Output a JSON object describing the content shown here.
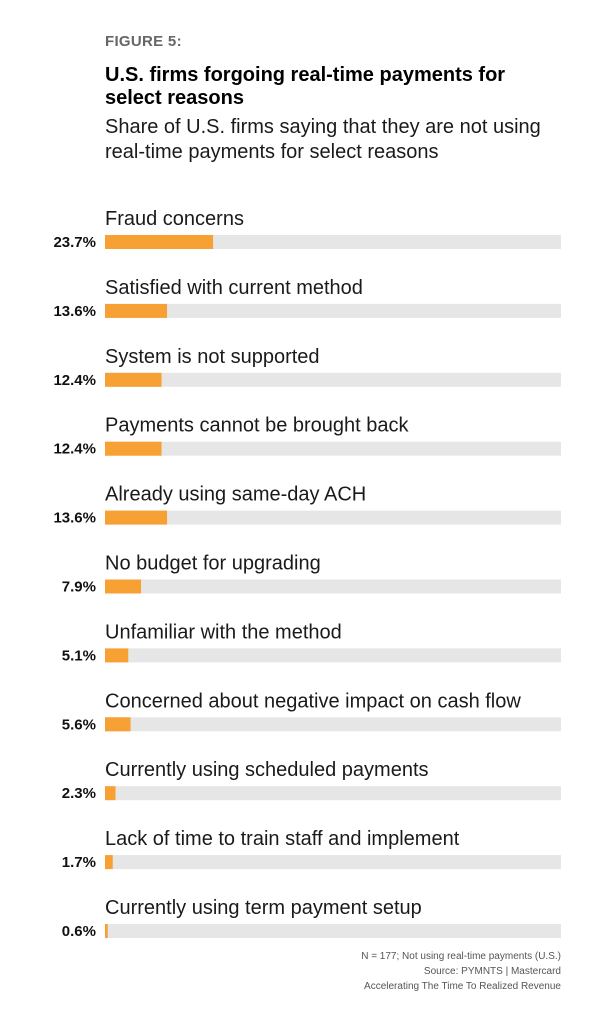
{
  "figure_label": "FIGURE 5:",
  "notes": {
    "sample": "N = 177; Not using real-time payments (U.S.)",
    "source": "Source: PYMNTS  |  Mastercard",
    "report": "Accelerating The Time To Realized Revenue"
  },
  "colors": {
    "bar": "#f7a033",
    "track": "#e6e6e6"
  },
  "chart_data": {
    "type": "bar",
    "orientation": "horizontal",
    "title": "U.S. firms forgoing real-time payments for select reasons",
    "subtitle": "Share of U.S. firms saying that they are not using real-time payments for select reasons",
    "unit": "%",
    "xlim": [
      0,
      100
    ],
    "categories": [
      "Fraud concerns",
      "Satisfied with current method",
      "System is not supported",
      "Payments cannot be brought back",
      "Already using same-day ACH",
      "No budget for upgrading",
      "Unfamiliar with the method",
      "Concerned about negative impact on cash flow",
      "Currently using scheduled payments",
      "Lack of time to train staff and implement",
      "Currently using term payment setup"
    ],
    "values": [
      23.7,
      13.6,
      12.4,
      12.4,
      13.6,
      7.9,
      5.1,
      5.6,
      2.3,
      1.7,
      0.6
    ],
    "value_labels": [
      "23.7%",
      "13.6%",
      "12.4%",
      "12.4%",
      "13.6%",
      "7.9%",
      "5.1%",
      "5.6%",
      "2.3%",
      "1.7%",
      "0.6%"
    ]
  }
}
